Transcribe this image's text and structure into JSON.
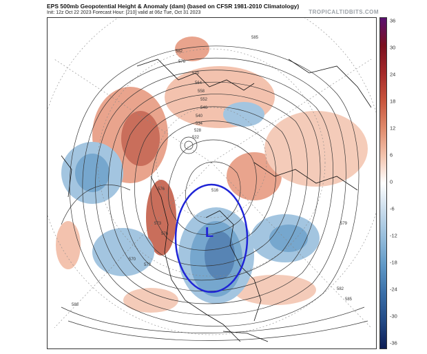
{
  "header": {
    "title": "EPS 500mb Geopotential Height & Anomaly (dam) (based on CFSR 1981-2010 Climatology)",
    "subtitle": "Init: 12z Oct 22 2023   Forecast Hour: [210]   valid at 06z Tue, Oct 31 2023",
    "brand": "TROPICALTIDBITS.COM"
  },
  "map": {
    "projection": "polar-stereographic-north",
    "low_marker": "L",
    "contour_labels": [
      "585",
      "582",
      "576",
      "570",
      "564",
      "558",
      "552",
      "546",
      "540",
      "534",
      "528",
      "522",
      "516",
      "570",
      "573",
      "576",
      "579",
      "573",
      "576",
      "588",
      "585",
      "582"
    ],
    "annotation": "blue circle around low over Hudson Bay / eastern Canada"
  },
  "colorbar": {
    "ticks": [
      "36",
      "30",
      "24",
      "18",
      "12",
      "6",
      "0",
      "-6",
      "-12",
      "-18",
      "-24",
      "-30",
      "-36"
    ],
    "colors": [
      "#5a1070",
      "#7a1020",
      "#a52a2a",
      "#c8553d",
      "#e08a6b",
      "#f3c3ad",
      "#ffffff",
      "#c9dcec",
      "#94bcdb",
      "#5f98c6",
      "#3a6fa8",
      "#234a86",
      "#0d1d55"
    ]
  }
}
